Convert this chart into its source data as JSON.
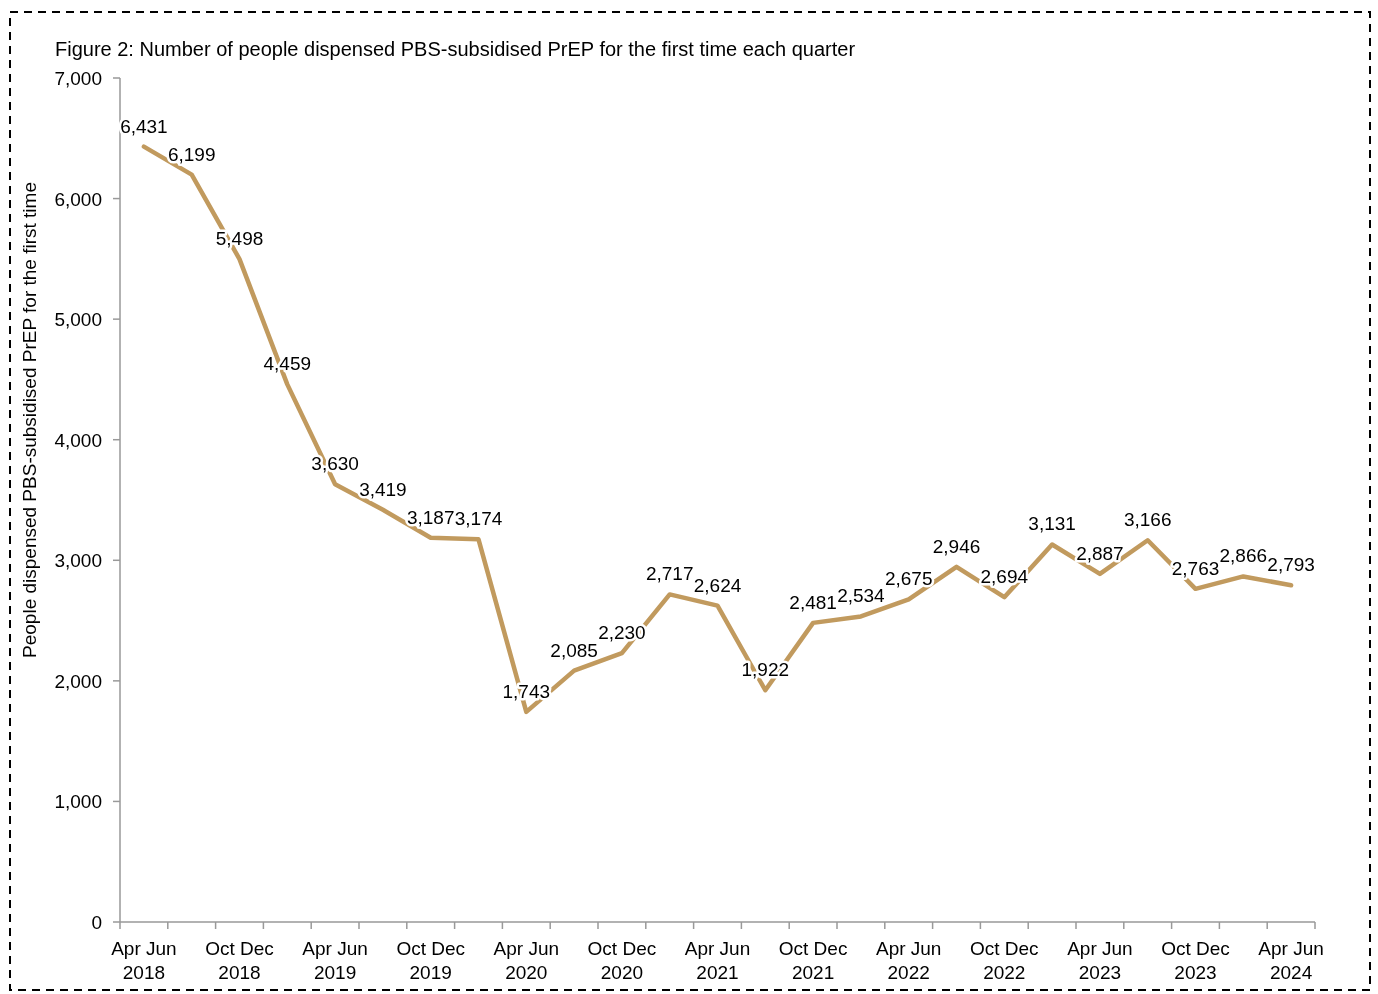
{
  "chart_data": {
    "type": "line",
    "title": "Figure 2: Number of people dispensed PBS-subsidised PrEP for the first time each quarter",
    "ylabel": "People dispensed PBS-subsidised PrEP for the first time",
    "categories": [
      "Apr Jun 2018",
      null,
      "Oct Dec 2018",
      null,
      "Apr Jun 2019",
      null,
      "Oct Dec 2019",
      null,
      "Apr Jun 2020",
      null,
      "Oct Dec 2020",
      null,
      "Apr Jun 2021",
      null,
      "Oct Dec 2021",
      null,
      "Apr Jun 2022",
      null,
      "Oct Dec 2022",
      null,
      "Apr Jun 2023",
      null,
      "Oct Dec 2023",
      null,
      "Apr Jun 2024"
    ],
    "series": [
      {
        "color": "#c19a5e",
        "values": [
          6431,
          6199,
          5498,
          4459,
          3630,
          3419,
          3187,
          3174,
          1743,
          2085,
          2230,
          2717,
          2624,
          1922,
          2481,
          2534,
          2675,
          2946,
          2694,
          3131,
          2887,
          3166,
          2763,
          2866,
          2793
        ],
        "value_labels": [
          "6,431",
          "6,199",
          "5,498",
          "4,459",
          "3,630",
          "3,419",
          "3,187",
          "3,174",
          "1,743",
          "2,085",
          "2,230",
          "2,717",
          "2,624",
          "1,922",
          "2,481",
          "2,534",
          "2,675",
          "2,946",
          "2,694",
          "3,131",
          "2,887",
          "3,166",
          "2,763",
          "2,866",
          "2,793"
        ]
      }
    ],
    "ylim": [
      0,
      7000
    ],
    "yticks": [
      {
        "value": 0,
        "label": "0"
      },
      {
        "value": 1000,
        "label": "1,000"
      },
      {
        "value": 2000,
        "label": "2,000"
      },
      {
        "value": 3000,
        "label": "3,000"
      },
      {
        "value": 4000,
        "label": "4,000"
      },
      {
        "value": 5000,
        "label": "5,000"
      },
      {
        "value": 6000,
        "label": "6,000"
      },
      {
        "value": 7000,
        "label": "7,000"
      }
    ],
    "grid": false,
    "marker": "none",
    "line_style": "solid"
  }
}
